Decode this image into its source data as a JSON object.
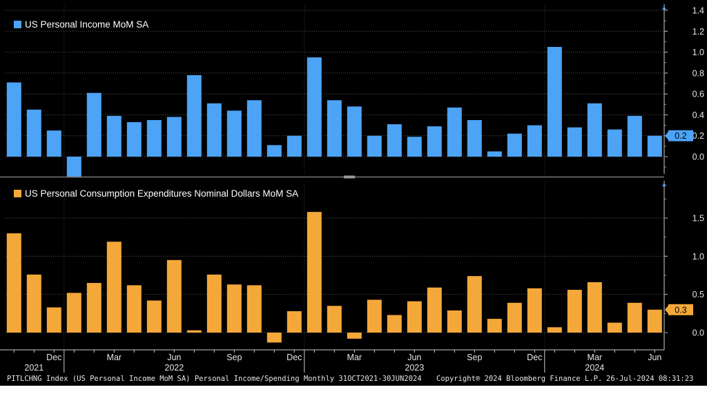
{
  "chart_data": [
    {
      "type": "bar",
      "legend": "US Personal Income MoM SA",
      "color": "#4da3f5",
      "categories": [
        "Oct 2021",
        "Nov 2021",
        "Dec 2021",
        "Jan 2022",
        "Feb 2022",
        "Mar 2022",
        "Apr 2022",
        "May 2022",
        "Jun 2022",
        "Jul 2022",
        "Aug 2022",
        "Sep 2022",
        "Oct 2022",
        "Nov 2022",
        "Dec 2022",
        "Jan 2023",
        "Feb 2023",
        "Mar 2023",
        "Apr 2023",
        "May 2023",
        "Jun 2023",
        "Jul 2023",
        "Aug 2023",
        "Sep 2023",
        "Oct 2023",
        "Nov 2023",
        "Dec 2023",
        "Jan 2024",
        "Feb 2024",
        "Mar 2024",
        "Apr 2024",
        "May 2024",
        "Jun 2024"
      ],
      "values": [
        0.71,
        0.45,
        0.25,
        -0.2,
        0.61,
        0.39,
        0.33,
        0.35,
        0.38,
        0.78,
        0.51,
        0.44,
        0.54,
        0.11,
        0.2,
        0.95,
        0.54,
        0.48,
        0.2,
        0.31,
        0.19,
        0.29,
        0.47,
        0.35,
        0.05,
        0.22,
        0.3,
        1.05,
        0.28,
        0.51,
        0.26,
        0.39,
        0.2
      ],
      "ylim": [
        -0.2,
        1.45
      ],
      "yticks": [
        "1.4",
        "1.2",
        "1.0",
        "0.8",
        "0.6",
        "0.4",
        "0.2",
        "0.0"
      ],
      "last_value_label": "0.2"
    },
    {
      "type": "bar",
      "legend": "US Personal Consumption Expenditures Nominal Dollars MoM SA",
      "color": "#f4a83a",
      "categories": [
        "Oct 2021",
        "Nov 2021",
        "Dec 2021",
        "Jan 2022",
        "Feb 2022",
        "Mar 2022",
        "Apr 2022",
        "May 2022",
        "Jun 2022",
        "Jul 2022",
        "Aug 2022",
        "Sep 2022",
        "Oct 2022",
        "Nov 2022",
        "Dec 2022",
        "Jan 2023",
        "Feb 2023",
        "Mar 2023",
        "Apr 2023",
        "May 2023",
        "Jun 2023",
        "Jul 2023",
        "Aug 2023",
        "Sep 2023",
        "Oct 2023",
        "Nov 2023",
        "Dec 2023",
        "Jan 2024",
        "Feb 2024",
        "Mar 2024",
        "Apr 2024",
        "May 2024",
        "Jun 2024"
      ],
      "values": [
        1.3,
        0.76,
        0.33,
        0.52,
        0.65,
        1.19,
        0.62,
        0.42,
        0.95,
        0.03,
        0.76,
        0.63,
        0.62,
        -0.13,
        0.28,
        1.58,
        0.35,
        -0.08,
        0.43,
        0.23,
        0.41,
        0.59,
        0.29,
        0.74,
        0.18,
        0.39,
        0.58,
        0.07,
        0.56,
        0.66,
        0.13,
        0.39,
        0.3
      ],
      "ylim": [
        -0.25,
        1.95
      ],
      "yticks": [
        "1.5",
        "1.0",
        "0.5",
        "0.0"
      ],
      "last_value_label": "0.3"
    }
  ],
  "x_axis": {
    "month_labels": [
      {
        "label": "Dec",
        "index": 2
      },
      {
        "label": "Mar",
        "index": 5
      },
      {
        "label": "Jun",
        "index": 8
      },
      {
        "label": "Sep",
        "index": 11
      },
      {
        "label": "Dec",
        "index": 14
      },
      {
        "label": "Mar",
        "index": 17
      },
      {
        "label": "Jun",
        "index": 20
      },
      {
        "label": "Sep",
        "index": 23
      },
      {
        "label": "Dec",
        "index": 26
      },
      {
        "label": "Mar",
        "index": 29
      },
      {
        "label": "Jun",
        "index": 32
      }
    ],
    "year_labels": [
      {
        "label": "2021",
        "index": 1
      },
      {
        "label": "2022",
        "index": 8
      },
      {
        "label": "2023",
        "index": 20
      },
      {
        "label": "2024",
        "index": 29
      }
    ]
  },
  "footer": {
    "left": "PITLCHNG Index (US Personal Income MoM SA) Personal Income/Spending  Monthly 31OCT2021-30JUN2024",
    "copyright": "Copyright® 2024 Bloomberg Finance L.P.",
    "timestamp": "26-Jul-2024 08:31:23"
  }
}
